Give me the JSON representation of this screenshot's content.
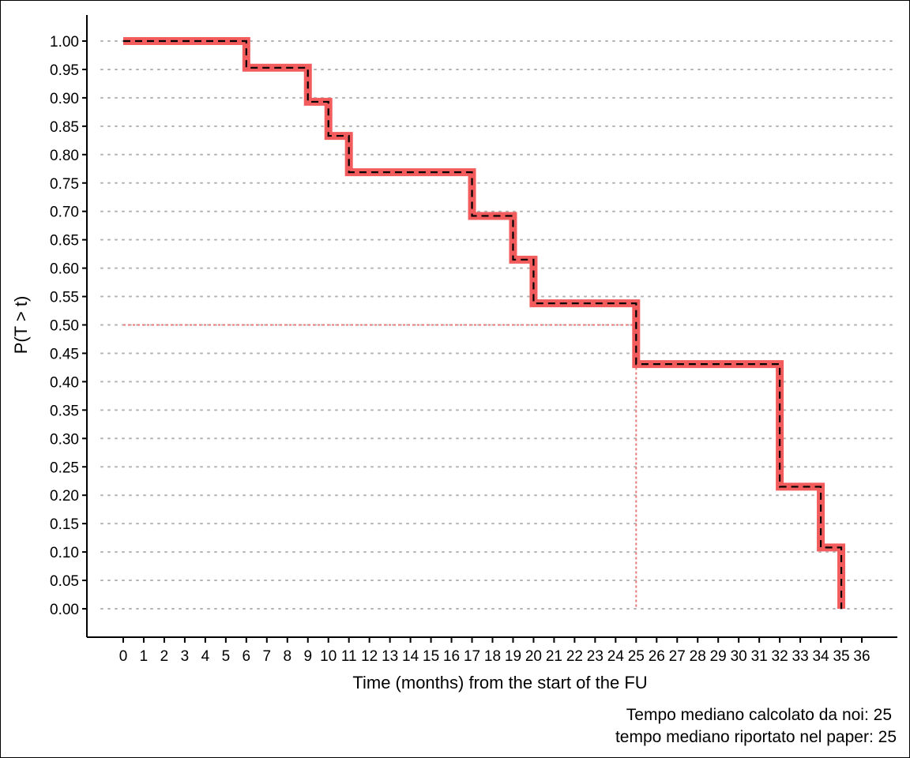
{
  "chart_data": {
    "type": "line",
    "subtype": "step",
    "xlabel": "Time (months) from the start of the FU",
    "ylabel": "P(T > t)",
    "xlim": [
      0,
      36
    ],
    "ylim": [
      0,
      1
    ],
    "x_ticks": [
      0,
      1,
      2,
      3,
      4,
      5,
      6,
      7,
      8,
      9,
      10,
      11,
      12,
      13,
      14,
      15,
      16,
      17,
      18,
      19,
      20,
      21,
      22,
      23,
      24,
      25,
      26,
      27,
      28,
      29,
      30,
      31,
      32,
      33,
      34,
      35,
      36
    ],
    "y_ticks": [
      "0.00",
      "0.05",
      "0.10",
      "0.15",
      "0.20",
      "0.25",
      "0.30",
      "0.35",
      "0.40",
      "0.45",
      "0.50",
      "0.55",
      "0.60",
      "0.65",
      "0.70",
      "0.75",
      "0.80",
      "0.85",
      "0.90",
      "0.95",
      "1.00"
    ],
    "grid": "horizontal dotted",
    "series": [
      {
        "color": "#F25C5C",
        "overlay_color": "#000000",
        "x": [
          0,
          6,
          9,
          10,
          11,
          17,
          19,
          20,
          25,
          32,
          34,
          35
        ],
        "y": [
          1.0,
          0.953,
          0.893,
          0.833,
          0.769,
          0.692,
          0.615,
          0.538,
          0.431,
          0.215,
          0.108,
          0.0
        ]
      }
    ],
    "median_reference": {
      "color": "#E8787A",
      "y": 0.5,
      "x": 25
    },
    "annotations": [
      "Tempo mediano calcolato da noi: 25",
      "tempo mediano riportato nel paper: 25"
    ]
  }
}
